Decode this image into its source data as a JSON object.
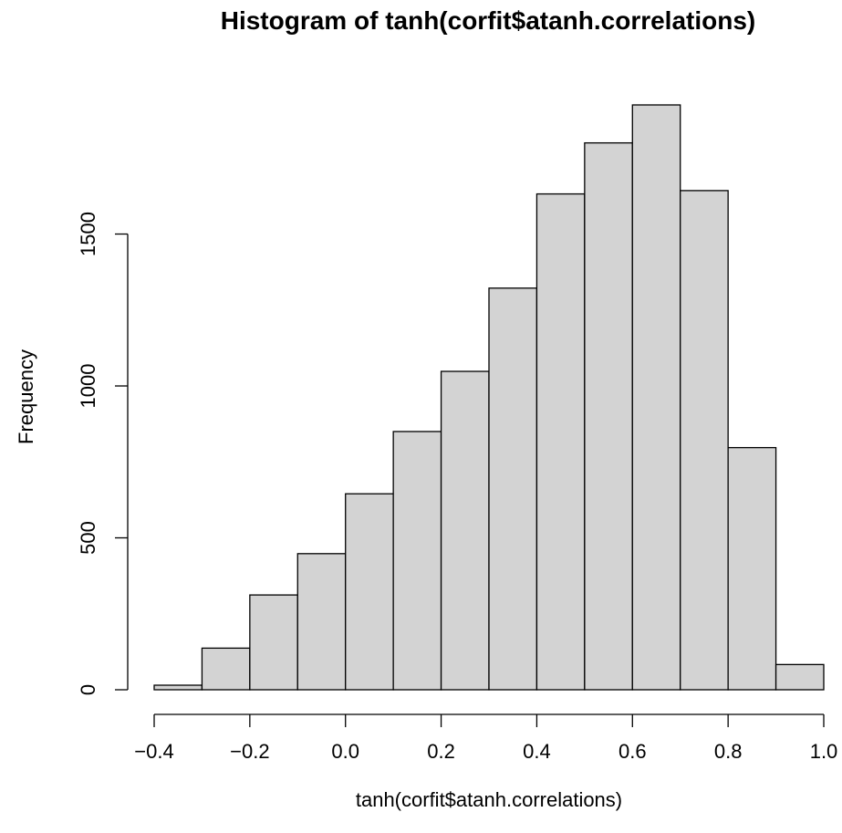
{
  "chart_data": {
    "type": "bar",
    "title": "Histogram of tanh(corfit$atanh.correlations)",
    "xlabel": "tanh(corfit$atanh.correlations)",
    "ylabel": "Frequency",
    "bins": [
      {
        "start": -0.4,
        "end": -0.3,
        "count": 15
      },
      {
        "start": -0.3,
        "end": -0.2,
        "count": 137
      },
      {
        "start": -0.2,
        "end": -0.1,
        "count": 312
      },
      {
        "start": -0.1,
        "end": 0.0,
        "count": 448
      },
      {
        "start": 0.0,
        "end": 0.1,
        "count": 645
      },
      {
        "start": 0.1,
        "end": 0.2,
        "count": 850
      },
      {
        "start": 0.2,
        "end": 0.3,
        "count": 1048
      },
      {
        "start": 0.3,
        "end": 0.4,
        "count": 1322
      },
      {
        "start": 0.4,
        "end": 0.5,
        "count": 1632
      },
      {
        "start": 0.5,
        "end": 0.6,
        "count": 1800
      },
      {
        "start": 0.6,
        "end": 0.7,
        "count": 1925
      },
      {
        "start": 0.7,
        "end": 0.8,
        "count": 1643
      },
      {
        "start": 0.8,
        "end": 0.9,
        "count": 797
      },
      {
        "start": 0.9,
        "end": 1.0,
        "count": 83
      }
    ],
    "xlim": [
      -0.4,
      1.0
    ],
    "ylim": [
      0,
      1925
    ],
    "x_ticks": [
      -0.4,
      -0.2,
      0.0,
      0.2,
      0.4,
      0.6,
      0.8,
      1.0
    ],
    "x_tick_labels": [
      "−0.4",
      "−0.2",
      "0.0",
      "0.2",
      "0.4",
      "0.6",
      "0.8",
      "1.0"
    ],
    "y_ticks": [
      0,
      500,
      1000,
      1500
    ],
    "y_tick_labels": [
      "0",
      "500",
      "1000",
      "1500"
    ],
    "grid": false,
    "colors": {
      "bar_fill": "#d3d3d3",
      "bar_stroke": "#000000"
    }
  }
}
